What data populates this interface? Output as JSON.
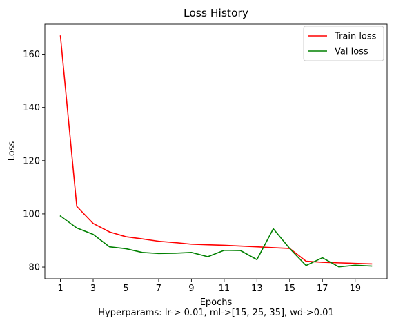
{
  "chart_data": {
    "type": "line",
    "title": "Loss History",
    "xlabel": "Epochs",
    "ylabel": "Loss",
    "caption": "Hyperparams: lr-> 0.01, ml->[15, 25, 35], wd->0.01",
    "x": [
      1,
      2,
      3,
      4,
      5,
      6,
      7,
      8,
      9,
      10,
      11,
      12,
      13,
      14,
      15,
      16,
      17,
      18,
      19,
      20
    ],
    "xticks": [
      1,
      3,
      5,
      7,
      9,
      11,
      13,
      15,
      17,
      19
    ],
    "yticks": [
      80,
      100,
      120,
      140,
      160
    ],
    "xlim": [
      0.05,
      20.95
    ],
    "ylim": [
      75.6,
      171.3
    ],
    "grid": false,
    "legend_position": "top-right",
    "series": [
      {
        "name": "Train loss",
        "color": "#ff0000",
        "values": [
          166.9,
          102.8,
          96.4,
          93.2,
          91.4,
          90.6,
          89.7,
          89.2,
          88.6,
          88.4,
          88.2,
          87.9,
          87.6,
          87.3,
          87.0,
          82.2,
          81.8,
          81.6,
          81.4,
          81.2
        ]
      },
      {
        "name": "Val loss",
        "color": "#008000",
        "values": [
          99.2,
          94.7,
          92.3,
          87.6,
          86.9,
          85.5,
          85.1,
          85.2,
          85.5,
          83.9,
          86.3,
          86.2,
          82.8,
          94.4,
          87.0,
          80.6,
          83.5,
          80.1,
          80.7,
          80.4
        ]
      }
    ]
  }
}
